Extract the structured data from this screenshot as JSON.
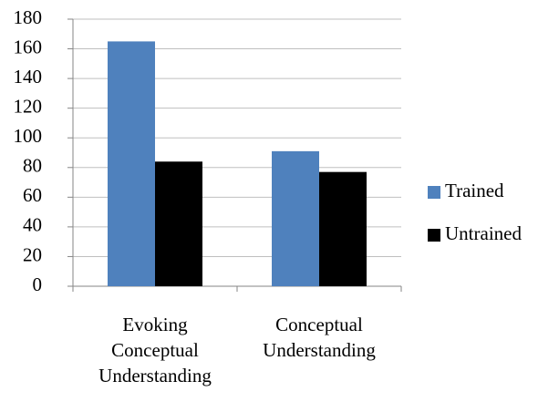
{
  "chart_data": {
    "type": "bar",
    "categories": [
      "Evoking Conceptual Understanding",
      "Conceptual Understanding"
    ],
    "series": [
      {
        "name": "Trained",
        "color": "#4f81bd",
        "values": [
          165,
          91
        ]
      },
      {
        "name": "Untrained",
        "color": "#000000",
        "values": [
          84,
          77
        ]
      }
    ],
    "ylim": [
      0,
      180
    ],
    "yticks": [
      0,
      20,
      40,
      60,
      80,
      100,
      120,
      140,
      160,
      180
    ],
    "grid": true,
    "legend": "right"
  }
}
